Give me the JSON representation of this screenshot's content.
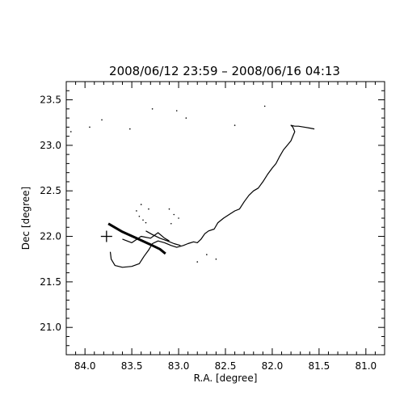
{
  "chart_data": {
    "type": "scatter",
    "title": "2008/06/12 23:59 – 2008/06/16 04:13",
    "xlabel": "R.A. [degree]",
    "ylabel": "Dec [degree]",
    "xlim": [
      84.2,
      80.8
    ],
    "ylim": [
      20.7,
      23.7
    ],
    "x_reversed": true,
    "x_ticks": [
      "84.0",
      "83.5",
      "83.0",
      "82.5",
      "82.0",
      "81.5",
      "81.0"
    ],
    "x_tick_values": [
      84.0,
      83.5,
      83.0,
      82.5,
      82.0,
      81.5,
      81.0
    ],
    "y_ticks": [
      "21.0",
      "21.5",
      "22.0",
      "22.5",
      "23.0",
      "23.5"
    ],
    "y_tick_values": [
      21.0,
      21.5,
      22.0,
      22.5,
      23.0,
      23.5
    ],
    "grid": false,
    "marker": {
      "x": 83.77,
      "y": 22.0,
      "symbol": "+"
    },
    "series": [
      {
        "style": "line",
        "values_note": "",
        "x": [
          83.73,
          83.72,
          83.68,
          83.6,
          83.5,
          83.42,
          83.37,
          83.32,
          83.28,
          83.22,
          83.15,
          83.08,
          83.02,
          82.95,
          82.9,
          82.84,
          82.8,
          82.76,
          82.72,
          82.68,
          82.62,
          82.58,
          82.52,
          82.46,
          82.4,
          82.35,
          82.3,
          82.25,
          82.2,
          82.15,
          82.1,
          82.05,
          82.0,
          81.96,
          81.92,
          81.88,
          81.84,
          81.8,
          81.78,
          81.76,
          81.78,
          81.8,
          81.76,
          81.72,
          81.66,
          81.6,
          81.55
        ],
        "y": [
          21.83,
          21.75,
          21.68,
          21.66,
          21.67,
          21.7,
          21.78,
          21.85,
          21.92,
          21.95,
          21.93,
          21.9,
          21.88,
          21.9,
          21.92,
          21.94,
          21.93,
          21.97,
          22.03,
          22.06,
          22.08,
          22.15,
          22.2,
          22.24,
          22.28,
          22.3,
          22.38,
          22.45,
          22.5,
          22.53,
          22.6,
          22.68,
          22.75,
          22.8,
          22.88,
          22.95,
          23.0,
          23.05,
          23.1,
          23.15,
          23.2,
          23.22,
          23.21,
          23.21,
          23.2,
          23.19,
          23.18
        ]
      },
      {
        "style": "line",
        "x": [
          83.75,
          83.6,
          83.45,
          83.3,
          83.2,
          83.14
        ],
        "y": [
          22.14,
          22.05,
          21.98,
          21.91,
          21.86,
          21.81
        ]
      },
      {
        "style": "line",
        "x": [
          83.35,
          83.28,
          83.2,
          83.12,
          83.05,
          82.98
        ],
        "y": [
          22.06,
          22.02,
          21.98,
          21.95,
          21.92,
          21.9
        ]
      },
      {
        "style": "line",
        "x": [
          83.6,
          83.5,
          83.4,
          83.3,
          83.22,
          83.15,
          83.1
        ],
        "y": [
          21.97,
          21.93,
          22.0,
          21.98,
          22.04,
          21.98,
          21.95
        ]
      },
      {
        "style": "points",
        "x": [
          84.15,
          83.95,
          83.82,
          83.52,
          83.28,
          83.02,
          82.92,
          82.4,
          82.08,
          83.4,
          83.32,
          83.42,
          83.38,
          83.45,
          83.35,
          83.1,
          83.05,
          83.0,
          83.08,
          82.8,
          82.7,
          82.6
        ],
        "y": [
          23.15,
          23.2,
          23.28,
          23.18,
          23.4,
          23.38,
          23.3,
          23.22,
          23.43,
          22.35,
          22.3,
          22.22,
          22.18,
          22.28,
          22.15,
          22.3,
          22.24,
          22.2,
          22.14,
          21.72,
          21.8,
          21.75
        ]
      }
    ]
  }
}
